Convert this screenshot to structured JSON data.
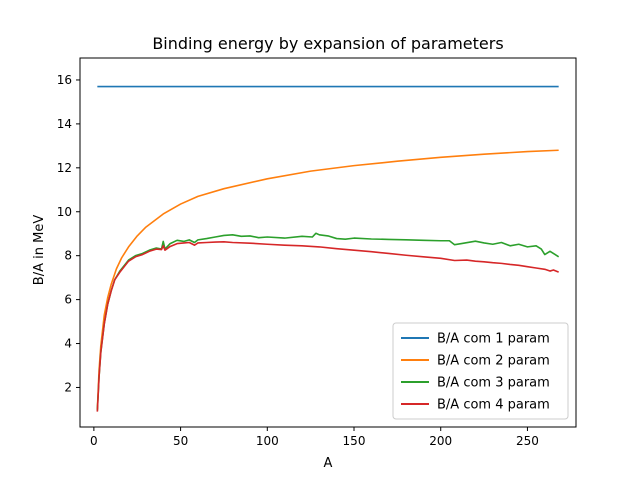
{
  "chart_data": {
    "type": "line",
    "title": "Binding energy by expansion of parameters",
    "xlabel": "A",
    "ylabel": "B/A in MeV",
    "xlim": [
      -8,
      278
    ],
    "ylim": [
      0.2,
      17.0
    ],
    "xticks": [
      0,
      50,
      100,
      150,
      200,
      250
    ],
    "yticks": [
      2,
      4,
      6,
      8,
      10,
      12,
      14,
      16
    ],
    "grid": false,
    "legend_position": "lower-right",
    "series": [
      {
        "name": "B/A com 1 param",
        "color": "#1f77b4",
        "points": [
          [
            2,
            15.7
          ],
          [
            268,
            15.7
          ]
        ]
      },
      {
        "name": "B/A com 2 param",
        "color": "#ff7f0e",
        "points": [
          [
            2,
            1.0
          ],
          [
            3,
            2.8
          ],
          [
            4,
            3.9
          ],
          [
            6,
            5.3
          ],
          [
            8,
            6.1
          ],
          [
            10,
            6.7
          ],
          [
            13,
            7.4
          ],
          [
            16,
            7.9
          ],
          [
            20,
            8.4
          ],
          [
            25,
            8.9
          ],
          [
            30,
            9.3
          ],
          [
            40,
            9.9
          ],
          [
            50,
            10.35
          ],
          [
            60,
            10.7
          ],
          [
            75,
            11.05
          ],
          [
            100,
            11.5
          ],
          [
            125,
            11.85
          ],
          [
            150,
            12.1
          ],
          [
            175,
            12.3
          ],
          [
            200,
            12.48
          ],
          [
            225,
            12.62
          ],
          [
            250,
            12.74
          ],
          [
            268,
            12.8
          ]
        ]
      },
      {
        "name": "B/A com 3 param",
        "color": "#2ca02c",
        "points": [
          [
            2,
            0.95
          ],
          [
            3,
            2.5
          ],
          [
            4,
            3.6
          ],
          [
            6,
            4.9
          ],
          [
            8,
            5.8
          ],
          [
            10,
            6.4
          ],
          [
            12,
            6.9
          ],
          [
            15,
            7.3
          ],
          [
            18,
            7.6
          ],
          [
            20,
            7.8
          ],
          [
            24,
            8.0
          ],
          [
            28,
            8.1
          ],
          [
            32,
            8.25
          ],
          [
            36,
            8.35
          ],
          [
            39,
            8.3
          ],
          [
            40,
            8.65
          ],
          [
            41,
            8.3
          ],
          [
            44,
            8.55
          ],
          [
            48,
            8.7
          ],
          [
            52,
            8.65
          ],
          [
            55,
            8.72
          ],
          [
            58,
            8.6
          ],
          [
            60,
            8.72
          ],
          [
            65,
            8.78
          ],
          [
            70,
            8.85
          ],
          [
            75,
            8.92
          ],
          [
            80,
            8.95
          ],
          [
            85,
            8.88
          ],
          [
            90,
            8.9
          ],
          [
            95,
            8.82
          ],
          [
            100,
            8.85
          ],
          [
            110,
            8.8
          ],
          [
            120,
            8.88
          ],
          [
            126,
            8.85
          ],
          [
            128,
            9.02
          ],
          [
            130,
            8.95
          ],
          [
            135,
            8.9
          ],
          [
            140,
            8.78
          ],
          [
            145,
            8.75
          ],
          [
            150,
            8.8
          ],
          [
            160,
            8.76
          ],
          [
            170,
            8.74
          ],
          [
            180,
            8.72
          ],
          [
            190,
            8.7
          ],
          [
            200,
            8.68
          ],
          [
            205,
            8.68
          ],
          [
            208,
            8.5
          ],
          [
            212,
            8.55
          ],
          [
            220,
            8.66
          ],
          [
            225,
            8.58
          ],
          [
            230,
            8.52
          ],
          [
            235,
            8.6
          ],
          [
            240,
            8.45
          ],
          [
            245,
            8.52
          ],
          [
            250,
            8.4
          ],
          [
            255,
            8.45
          ],
          [
            258,
            8.3
          ],
          [
            260,
            8.05
          ],
          [
            263,
            8.2
          ],
          [
            266,
            8.05
          ],
          [
            268,
            7.95
          ]
        ]
      },
      {
        "name": "B/A com 4 param",
        "color": "#d62728",
        "points": [
          [
            2,
            0.9
          ],
          [
            3,
            2.5
          ],
          [
            4,
            3.6
          ],
          [
            6,
            4.9
          ],
          [
            8,
            5.8
          ],
          [
            10,
            6.4
          ],
          [
            12,
            6.9
          ],
          [
            15,
            7.25
          ],
          [
            18,
            7.55
          ],
          [
            20,
            7.75
          ],
          [
            24,
            7.95
          ],
          [
            28,
            8.05
          ],
          [
            32,
            8.2
          ],
          [
            36,
            8.3
          ],
          [
            39,
            8.28
          ],
          [
            40,
            8.45
          ],
          [
            41,
            8.25
          ],
          [
            44,
            8.42
          ],
          [
            48,
            8.55
          ],
          [
            52,
            8.58
          ],
          [
            55,
            8.6
          ],
          [
            58,
            8.48
          ],
          [
            60,
            8.58
          ],
          [
            65,
            8.6
          ],
          [
            70,
            8.62
          ],
          [
            75,
            8.63
          ],
          [
            80,
            8.6
          ],
          [
            90,
            8.57
          ],
          [
            100,
            8.52
          ],
          [
            110,
            8.48
          ],
          [
            120,
            8.45
          ],
          [
            130,
            8.4
          ],
          [
            140,
            8.32
          ],
          [
            150,
            8.25
          ],
          [
            160,
            8.18
          ],
          [
            170,
            8.1
          ],
          [
            180,
            8.02
          ],
          [
            190,
            7.95
          ],
          [
            200,
            7.88
          ],
          [
            208,
            7.78
          ],
          [
            215,
            7.8
          ],
          [
            220,
            7.75
          ],
          [
            225,
            7.72
          ],
          [
            230,
            7.68
          ],
          [
            235,
            7.65
          ],
          [
            240,
            7.6
          ],
          [
            245,
            7.56
          ],
          [
            250,
            7.5
          ],
          [
            255,
            7.44
          ],
          [
            260,
            7.38
          ],
          [
            263,
            7.3
          ],
          [
            265,
            7.35
          ],
          [
            268,
            7.25
          ]
        ]
      }
    ]
  }
}
